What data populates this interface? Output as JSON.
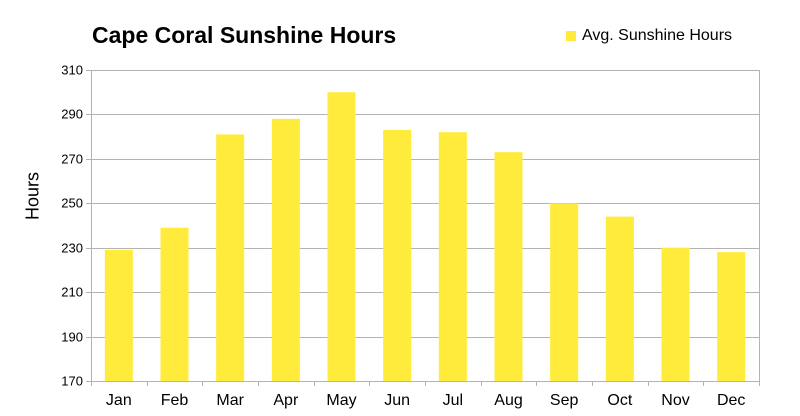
{
  "chart_data": {
    "type": "bar",
    "title": "Cape Coral Sunshine Hours",
    "ylabel": "Hours",
    "xlabel": "",
    "categories": [
      "Jan",
      "Feb",
      "Mar",
      "Apr",
      "May",
      "Jun",
      "Jul",
      "Aug",
      "Sep",
      "Oct",
      "Nov",
      "Dec"
    ],
    "series": [
      {
        "name": "Avg. Sunshine Hours",
        "values": [
          229,
          239,
          281,
          288,
          300,
          283,
          282,
          273,
          250,
          244,
          230,
          228
        ],
        "color": "#ffeb3b"
      }
    ],
    "ylim": [
      170,
      310
    ],
    "yticks": [
      170,
      190,
      210,
      230,
      250,
      270,
      290,
      310
    ],
    "grid": true,
    "legend_position": "top-right"
  }
}
